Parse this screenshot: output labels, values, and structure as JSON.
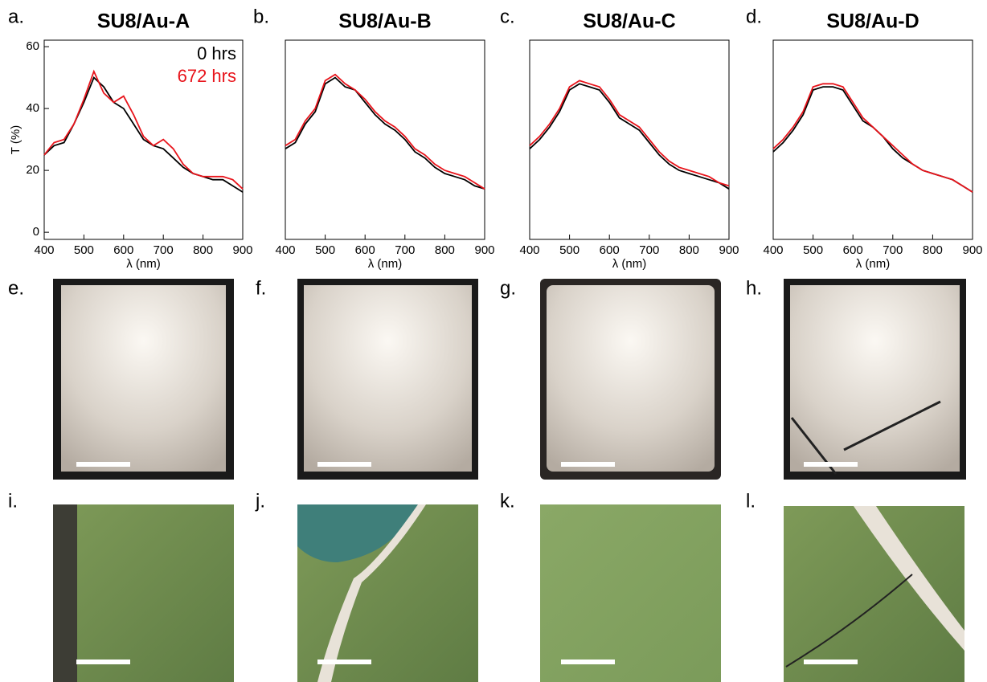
{
  "chart_data": [
    {
      "type": "line",
      "panel": "a.",
      "title": "SU8/Au-A",
      "xlabel": "λ (nm)",
      "ylabel": "T (%)",
      "x": [
        400,
        425,
        450,
        475,
        500,
        525,
        550,
        575,
        600,
        625,
        650,
        675,
        700,
        725,
        750,
        775,
        800,
        825,
        850,
        875,
        900
      ],
      "xlim": [
        400,
        900
      ],
      "xticks": [
        400,
        500,
        600,
        700,
        800,
        900
      ],
      "ylim": [
        -2.3,
        62.1
      ],
      "yticks": [
        0,
        20,
        40,
        60
      ],
      "legend": "upper right",
      "series": [
        {
          "name": "0 hrs",
          "color": "#000000",
          "values": [
            25,
            28,
            29,
            35,
            42,
            50,
            47,
            42,
            40,
            35,
            30,
            28,
            27,
            24,
            21,
            19,
            18,
            17,
            17,
            15,
            13
          ]
        },
        {
          "name": "672 hrs",
          "color": "#e8141b",
          "values": [
            25,
            29,
            30,
            35,
            43,
            52,
            45,
            42,
            44,
            38,
            31,
            28,
            30,
            27,
            22,
            19,
            18,
            18,
            18,
            17,
            14
          ]
        }
      ]
    },
    {
      "type": "line",
      "panel": "b.",
      "title": "SU8/Au-B",
      "xlabel": "λ (nm)",
      "x": [
        400,
        425,
        450,
        475,
        500,
        525,
        550,
        575,
        600,
        625,
        650,
        675,
        700,
        725,
        750,
        775,
        800,
        825,
        850,
        875,
        900
      ],
      "xlim": [
        400,
        900
      ],
      "xticks": [
        400,
        500,
        600,
        700,
        800,
        900
      ],
      "ylim": [
        -2.3,
        62.1
      ],
      "series": [
        {
          "color": "#000000",
          "values": [
            27,
            29,
            35,
            39,
            48,
            50,
            47,
            46,
            42,
            38,
            35,
            33,
            30,
            26,
            24,
            21,
            19,
            18,
            17,
            15,
            14
          ]
        },
        {
          "color": "#e8141b",
          "values": [
            28,
            30,
            36,
            40,
            49,
            51,
            48,
            46,
            43,
            39,
            36,
            34,
            31,
            27,
            25,
            22,
            20,
            19,
            18,
            16,
            14
          ]
        }
      ]
    },
    {
      "type": "line",
      "panel": "c.",
      "title": "SU8/Au-C",
      "xlabel": "λ (nm)",
      "x": [
        400,
        425,
        450,
        475,
        500,
        525,
        550,
        575,
        600,
        625,
        650,
        675,
        700,
        725,
        750,
        775,
        800,
        825,
        850,
        875,
        900
      ],
      "xlim": [
        400,
        900
      ],
      "xticks": [
        400,
        500,
        600,
        700,
        800,
        900
      ],
      "ylim": [
        -2.3,
        62.1
      ],
      "series": [
        {
          "color": "#000000",
          "values": [
            27,
            30,
            34,
            39,
            46,
            48,
            47,
            46,
            42,
            37,
            35,
            33,
            29,
            25,
            22,
            20,
            19,
            18,
            17,
            16,
            14
          ]
        },
        {
          "color": "#e8141b",
          "values": [
            28,
            31,
            35,
            40,
            47,
            49,
            48,
            47,
            43,
            38,
            36,
            34,
            30,
            26,
            23,
            21,
            20,
            19,
            18,
            16,
            15
          ]
        }
      ]
    },
    {
      "type": "line",
      "panel": "d.",
      "title": "SU8/Au-D",
      "xlabel": "λ (nm)",
      "x": [
        400,
        425,
        450,
        475,
        500,
        525,
        550,
        575,
        600,
        625,
        650,
        675,
        700,
        725,
        750,
        775,
        800,
        825,
        850,
        875,
        900
      ],
      "xlim": [
        400,
        900
      ],
      "xticks": [
        400,
        500,
        600,
        700,
        800,
        900
      ],
      "ylim": [
        -2.3,
        62.1
      ],
      "series": [
        {
          "color": "#000000",
          "values": [
            26,
            29,
            33,
            38,
            46,
            47,
            47,
            46,
            41,
            36,
            34,
            31,
            27,
            24,
            22,
            20,
            19,
            18,
            17,
            15,
            13
          ]
        },
        {
          "color": "#e8141b",
          "values": [
            27,
            30,
            34,
            39,
            47,
            48,
            48,
            47,
            42,
            37,
            34,
            31,
            28,
            25,
            22,
            20,
            19,
            18,
            17,
            15,
            13
          ]
        }
      ]
    }
  ],
  "photo_panels": [
    "e.",
    "f.",
    "g.",
    "h.",
    "i.",
    "j.",
    "k.",
    "l."
  ]
}
